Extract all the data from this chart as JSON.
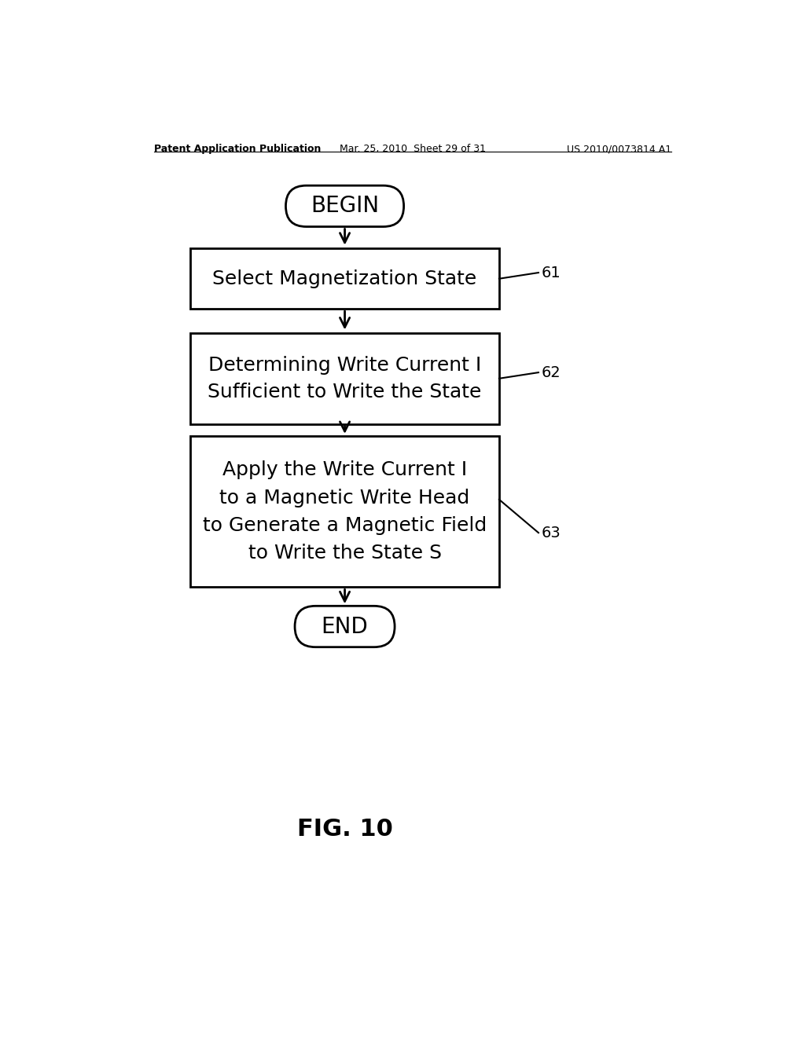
{
  "title_left": "Patent Application Publication",
  "title_mid": "Mar. 25, 2010  Sheet 29 of 31",
  "title_right": "US 2010/0073814 A1",
  "fig_label": "FIG. 10",
  "bg_color": "#ffffff",
  "text_color": "#000000",
  "box_edge_color": "#000000",
  "begin_text": "BEGIN",
  "end_text": "END",
  "box1_text": "Select Magnetization State",
  "box2_text": "Determining Write Current I\nSufficient to Write the State",
  "box3_text": "Apply the Write Current I\nto a Magnetic Write Head\nto Generate a Magnetic Field\nto Write the State S",
  "label1": "61",
  "label2": "62",
  "label3": "63",
  "header_fontsize": 9,
  "body_fontsize": 16,
  "label_fontsize": 14,
  "fig_fontsize": 22
}
